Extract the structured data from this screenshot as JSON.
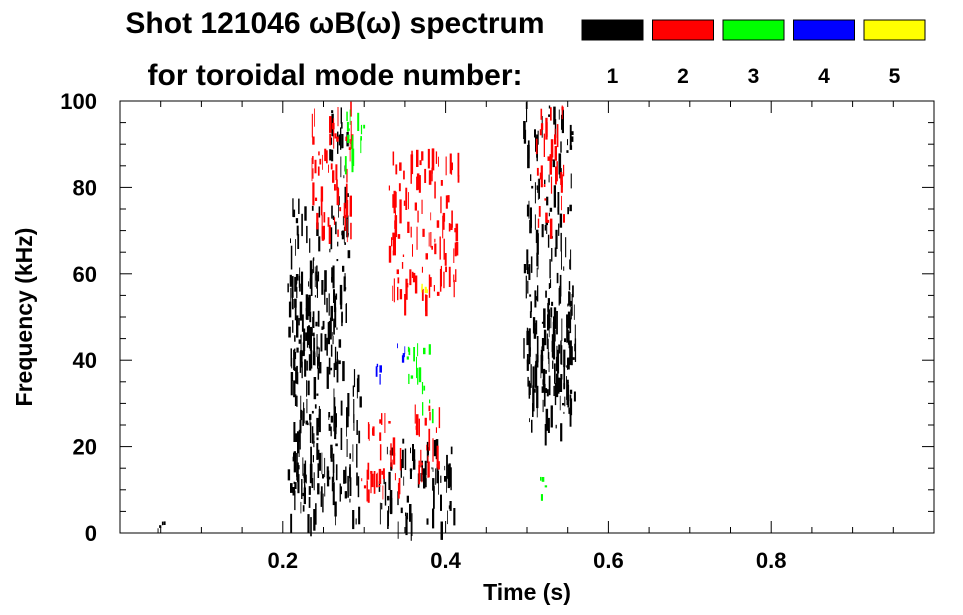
{
  "chart_data": {
    "type": "heatmap",
    "title_line1": "Shot 121046 ωB(ω) spectrum",
    "title_line2": "for toroidal mode number:",
    "xlabel": "Time (s)",
    "ylabel": "Frequency (kHz)",
    "xlim": [
      0.0,
      1.0
    ],
    "ylim": [
      0,
      100
    ],
    "x_ticks": [
      0.2,
      0.4,
      0.6,
      0.8
    ],
    "x_tick_labels": [
      "0.2",
      "0.4",
      "0.6",
      "0.8"
    ],
    "y_ticks": [
      0,
      20,
      40,
      60,
      80,
      100
    ],
    "y_tick_labels": [
      "0",
      "20",
      "40",
      "60",
      "80",
      "100"
    ],
    "legend": [
      {
        "label": "1",
        "color": "#000000"
      },
      {
        "label": "2",
        "color": "#ff0000"
      },
      {
        "label": "3",
        "color": "#00ff00"
      },
      {
        "label": "4",
        "color": "#0000ff"
      },
      {
        "label": "5",
        "color": "#ffff00"
      }
    ],
    "series": [
      {
        "mode": "1",
        "color": "#000000",
        "regions": [
          {
            "t": [
              0.205,
              0.245
            ],
            "f": [
              3,
              78
            ]
          },
          {
            "t": [
              0.21,
              0.265
            ],
            "f": [
              5,
              62
            ]
          },
          {
            "t": [
              0.255,
              0.28
            ],
            "f": [
              8,
              100
            ]
          },
          {
            "t": [
              0.28,
              0.295
            ],
            "f": [
              2,
              38
            ]
          },
          {
            "t": [
              0.315,
              0.41
            ],
            "f": [
              2,
              22
            ]
          },
          {
            "t": [
              0.495,
              0.555
            ],
            "f": [
              25,
              100
            ]
          },
          {
            "t": [
              0.505,
              0.56
            ],
            "f": [
              30,
              60
            ]
          },
          {
            "t": [
              0.04,
              0.06
            ],
            "f": [
              1,
              3
            ]
          }
        ]
      },
      {
        "mode": "2",
        "color": "#ff0000",
        "regions": [
          {
            "t": [
              0.235,
              0.285
            ],
            "f": [
              70,
              100
            ]
          },
          {
            "t": [
              0.295,
              0.345
            ],
            "f": [
              10,
              28
            ]
          },
          {
            "t": [
              0.36,
              0.395
            ],
            "f": [
              15,
              30
            ]
          },
          {
            "t": [
              0.33,
              0.415
            ],
            "f": [
              55,
              90
            ]
          },
          {
            "t": [
              0.51,
              0.545
            ],
            "f": [
              72,
              100
            ]
          }
        ]
      },
      {
        "mode": "3",
        "color": "#00ff00",
        "regions": [
          {
            "t": [
              0.275,
              0.3
            ],
            "f": [
              85,
              100
            ]
          },
          {
            "t": [
              0.35,
              0.38
            ],
            "f": [
              35,
              45
            ]
          },
          {
            "t": [
              0.37,
              0.385
            ],
            "f": [
              28,
              36
            ]
          },
          {
            "t": [
              0.515,
              0.525
            ],
            "f": [
              8,
              13
            ]
          }
        ]
      },
      {
        "mode": "4",
        "color": "#0000ff",
        "regions": [
          {
            "t": [
              0.305,
              0.32
            ],
            "f": [
              36,
              40
            ]
          },
          {
            "t": [
              0.34,
              0.35
            ],
            "f": [
              41,
              44
            ]
          }
        ]
      },
      {
        "mode": "5",
        "color": "#ffff00",
        "regions": [
          {
            "t": [
              0.37,
              0.38
            ],
            "f": [
              56,
              58
            ]
          }
        ]
      }
    ]
  }
}
